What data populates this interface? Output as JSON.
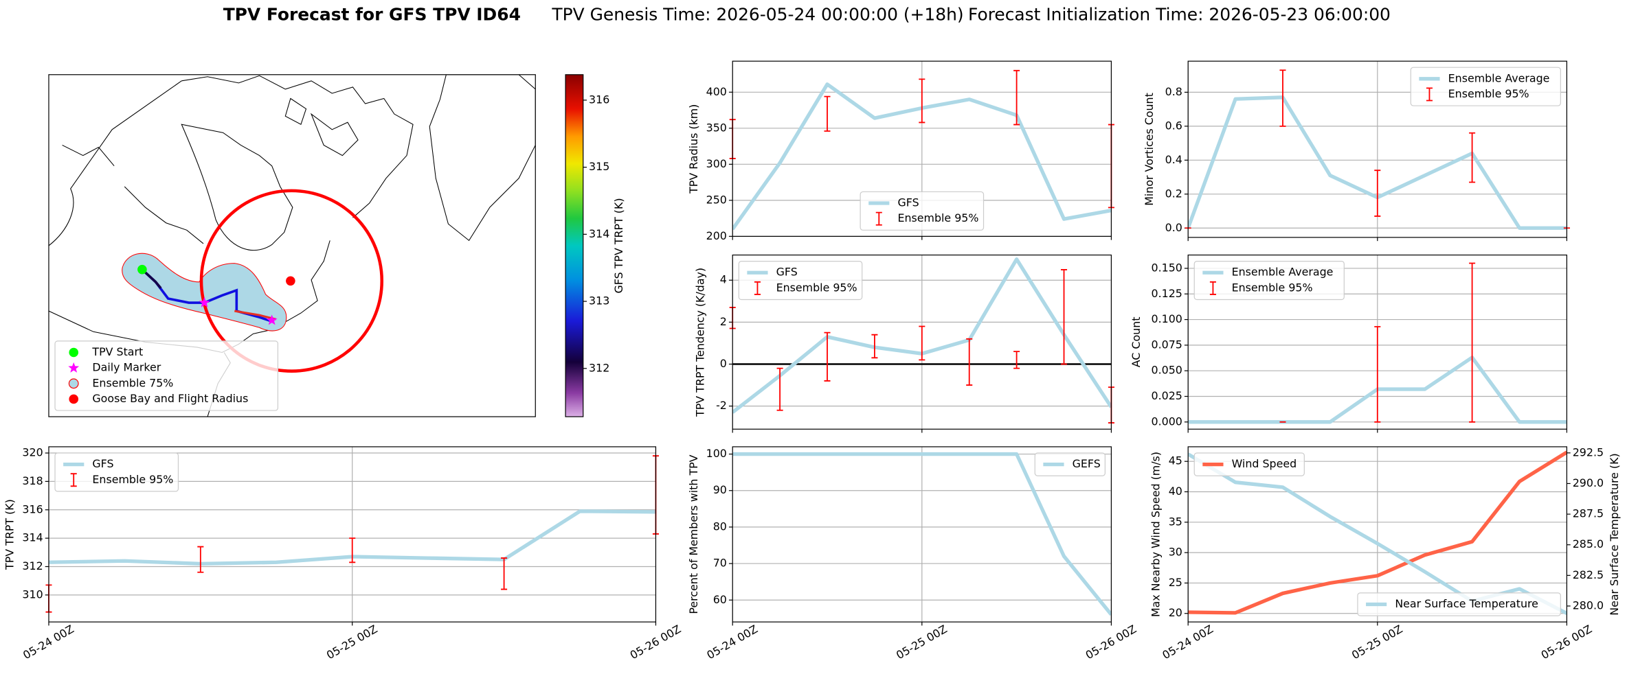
{
  "figure_title": {
    "main": "TPV Forecast for GFS TPV ID64",
    "genesis": "TPV Genesis Time: 2026-05-24 00:00:00 (+18h)",
    "init": "Forecast Initialization Time: 2026-05-23 06:00:00"
  },
  "chart_data": [
    {
      "type": "map",
      "legend": "lower left",
      "markers": [
        {
          "name": "TPV Start",
          "color": "#00ff00",
          "marker": "circle"
        },
        {
          "name": "Daily Marker",
          "color": "#ff00ff",
          "marker": "star"
        },
        {
          "name": "Ensemble 75%",
          "color": "#add8e6",
          "marker": "circle-edge"
        },
        {
          "name": "Goose Bay and Flight Radius",
          "color": "#ff0000",
          "marker": "circle"
        }
      ],
      "colorbar": {
        "label": "GFS TPV TRPT (K)",
        "clim": [
          311.28,
          316.38
        ],
        "ticks": [
          312,
          313,
          314,
          315,
          316
        ]
      }
    },
    {
      "type": "line",
      "ylabel": "TPV Radius (km)",
      "grid": true,
      "legend": "lower center",
      "x": [
        "05-24 00Z",
        "05-24 06Z",
        "05-24 12Z",
        "05-24 18Z",
        "05-25 00Z",
        "05-25 06Z",
        "05-25 12Z",
        "05-25 18Z",
        "05-26 00Z"
      ],
      "xlim": [
        "05-24 00Z",
        "05-26 00Z"
      ],
      "xticks": [
        "05-24 00Z",
        "05-25 00Z",
        "05-26 00Z"
      ],
      "ylim": [
        200,
        443
      ],
      "yticks": [
        200,
        250,
        300,
        350,
        400
      ],
      "series": [
        {
          "name": "GFS",
          "color": "#add8e6",
          "values": [
            210,
            302,
            411,
            364,
            378,
            390,
            368,
            224,
            236
          ]
        }
      ],
      "errorbars": {
        "name": "Ensemble 95%",
        "color": "#ff0000",
        "low": [
          308,
          null,
          346,
          null,
          358,
          null,
          355,
          null,
          240
        ],
        "high": [
          362,
          null,
          394,
          null,
          418,
          null,
          430,
          null,
          355
        ]
      }
    },
    {
      "type": "line",
      "ylabel": "Minor Vortices Count",
      "grid": true,
      "legend": "upper right",
      "x": [
        "05-24 00Z",
        "05-24 06Z",
        "05-24 12Z",
        "05-24 18Z",
        "05-25 00Z",
        "05-25 06Z",
        "05-25 12Z",
        "05-25 18Z",
        "05-26 00Z"
      ],
      "xlim": [
        "05-24 00Z",
        "05-26 00Z"
      ],
      "xticks": [
        "05-24 00Z",
        "05-25 00Z",
        "05-26 00Z"
      ],
      "ylim": [
        -0.055,
        0.983
      ],
      "yticks": [
        {
          "value": 0,
          "label": "0.0"
        },
        0.2,
        0.4,
        0.6,
        0.8
      ],
      "series": [
        {
          "name": "Ensemble Average",
          "color": "#add8e6",
          "values": [
            0,
            0.76,
            0.77,
            0.31,
            0.18,
            0.31,
            0.44,
            0,
            0
          ]
        }
      ],
      "errorbars": {
        "name": "Ensemble 95%",
        "color": "#ff0000",
        "low": [
          0,
          null,
          0.6,
          null,
          0.07,
          null,
          0.27,
          null,
          0
        ],
        "high": [
          0,
          null,
          0.93,
          null,
          0.34,
          null,
          0.56,
          null,
          0
        ]
      }
    },
    {
      "type": "line",
      "ylabel": "TPV TRPT Tendency (K/day)",
      "grid": true,
      "legend": "upper left",
      "hline": 0,
      "x": [
        "05-24 00Z",
        "05-24 06Z",
        "05-24 12Z",
        "05-24 18Z",
        "05-25 00Z",
        "05-25 06Z",
        "05-25 12Z",
        "05-25 18Z",
        "05-26 00Z"
      ],
      "xlim": [
        "05-24 00Z",
        "05-26 00Z"
      ],
      "xticks": [
        "05-24 00Z",
        "05-25 00Z",
        "05-26 00Z"
      ],
      "ylim": [
        -3.1,
        5.2
      ],
      "yticks": [
        -2,
        0,
        2,
        4
      ],
      "series": [
        {
          "name": "GFS",
          "color": "#add8e6",
          "values": [
            -2.3,
            -0.55,
            1.3,
            0.8,
            0.5,
            1.15,
            5.0,
            1.4,
            -2.05
          ]
        }
      ],
      "errorbars": {
        "name": "Ensemble 95%",
        "color": "#ff0000",
        "low": [
          1.7,
          -2.2,
          -0.8,
          0.3,
          0.2,
          -1.0,
          -0.2,
          0,
          -2.8
        ],
        "high": [
          2.7,
          -0.2,
          1.5,
          1.4,
          1.8,
          1.2,
          0.6,
          4.5,
          -1.1
        ]
      }
    },
    {
      "type": "line",
      "ylabel": "AC Count",
      "grid": true,
      "legend": "upper left",
      "x": [
        "05-24 00Z",
        "05-24 06Z",
        "05-24 12Z",
        "05-24 18Z",
        "05-25 00Z",
        "05-25 06Z",
        "05-25 12Z",
        "05-25 18Z",
        "05-26 00Z"
      ],
      "xlim": [
        "05-24 00Z",
        "05-26 00Z"
      ],
      "xticks": [
        "05-24 00Z",
        "05-25 00Z",
        "05-26 00Z"
      ],
      "ylim": [
        -0.007,
        0.163
      ],
      "yticks": [
        {
          "value": 0,
          "label": "0.000"
        },
        {
          "value": 0.025,
          "label": "0.025"
        },
        {
          "value": 0.05,
          "label": "0.050"
        },
        {
          "value": 0.075,
          "label": "0.075"
        },
        {
          "value": 0.1,
          "label": "0.100"
        },
        {
          "value": 0.125,
          "label": "0.125"
        },
        {
          "value": 0.15,
          "label": "0.150"
        }
      ],
      "series": [
        {
          "name": "Ensemble Average",
          "color": "#add8e6",
          "values": [
            0,
            0,
            0,
            0,
            0.032,
            0.032,
            0.063,
            0,
            0
          ]
        }
      ],
      "errorbars": {
        "name": "Ensemble 95%",
        "color": "#ff0000",
        "low": [
          null,
          null,
          0,
          null,
          0,
          null,
          0,
          null,
          null
        ],
        "high": [
          null,
          null,
          0,
          null,
          0.093,
          null,
          0.155,
          null,
          null
        ]
      }
    },
    {
      "type": "line",
      "ylabel": "TPV TRPT (K)",
      "grid": true,
      "legend": "upper left",
      "x": [
        "05-24 00Z",
        "05-24 06Z",
        "05-24 12Z",
        "05-24 18Z",
        "05-25 00Z",
        "05-25 06Z",
        "05-25 12Z",
        "05-25 18Z",
        "05-26 00Z"
      ],
      "xlim": [
        "05-24 00Z",
        "05-26 00Z"
      ],
      "xticks": [
        "05-24 00Z",
        "05-25 00Z",
        "05-26 00Z"
      ],
      "ylim": [
        308.1,
        320.44
      ],
      "yticks": [
        310,
        312,
        314,
        316,
        318,
        320
      ],
      "series": [
        {
          "name": "GFS",
          "color": "#add8e6",
          "values": [
            312.3,
            312.4,
            312.2,
            312.3,
            312.7,
            312.6,
            312.5,
            315.9,
            315.85
          ]
        }
      ],
      "errorbars": {
        "name": "Ensemble 95%",
        "color": "#ff0000",
        "low": [
          308.8,
          null,
          311.6,
          null,
          312.3,
          null,
          310.4,
          null,
          314.3
        ],
        "high": [
          310.7,
          null,
          313.4,
          null,
          314.0,
          null,
          312.6,
          null,
          319.8
        ]
      }
    },
    {
      "type": "line",
      "ylabel": "Percent of Members with TPV",
      "grid": true,
      "legend": "upper right",
      "x": [
        "05-24 00Z",
        "05-24 06Z",
        "05-24 12Z",
        "05-24 18Z",
        "05-25 00Z",
        "05-25 06Z",
        "05-25 12Z",
        "05-25 18Z",
        "05-26 00Z"
      ],
      "xlim": [
        "05-24 00Z",
        "05-26 00Z"
      ],
      "xticks": [
        "05-24 00Z",
        "05-25 00Z",
        "05-26 00Z"
      ],
      "ylim": [
        54,
        102
      ],
      "yticks": [
        60,
        70,
        80,
        90,
        100
      ],
      "series": [
        {
          "name": "GEFS",
          "color": "#add8e6",
          "values": [
            100,
            100,
            100,
            100,
            100,
            100,
            100,
            72,
            56
          ]
        }
      ]
    },
    {
      "type": "line",
      "ylabel": "Max Nearby Wind Speed (m/s)",
      "ylabel_color": "#ff6347",
      "y2label": "Near Surface Temperature (K)",
      "y2label_color": "#4169e1",
      "grid": true,
      "x": [
        "05-24 00Z",
        "05-24 06Z",
        "05-24 12Z",
        "05-24 18Z",
        "05-25 00Z",
        "05-25 06Z",
        "05-25 12Z",
        "05-25 18Z",
        "05-26 00Z"
      ],
      "xlim": [
        "05-24 00Z",
        "05-26 00Z"
      ],
      "xticks": [
        "05-24 00Z",
        "05-25 00Z",
        "05-26 00Z"
      ],
      "ylim": [
        18.6,
        47.4
      ],
      "yticks": [
        20,
        25,
        30,
        35,
        40,
        45
      ],
      "y2lim": [
        278.7,
        293.0
      ],
      "y2ticks": [
        {
          "value": 280,
          "label": "280.0"
        },
        {
          "value": 282.5,
          "label": "282.5"
        },
        {
          "value": 285,
          "label": "285.0"
        },
        {
          "value": 287.5,
          "label": "287.5"
        },
        {
          "value": 290,
          "label": "290.0"
        },
        {
          "value": 292.5,
          "label": "292.5"
        }
      ],
      "series": [
        {
          "name": "Wind Speed",
          "color": "#ff6347",
          "legend": "upper left",
          "values": [
            20.2,
            20.1,
            23.3,
            25.0,
            26.2,
            29.6,
            31.8,
            41.7,
            46.5
          ]
        },
        {
          "name": "Near Surface Temperature",
          "color": "#add8e6",
          "axis": "y2",
          "legend": "lower right",
          "values": [
            292.4,
            290.1,
            289.7,
            287.3,
            285.1,
            282.8,
            280.4,
            281.4,
            279.4
          ]
        }
      ]
    }
  ]
}
